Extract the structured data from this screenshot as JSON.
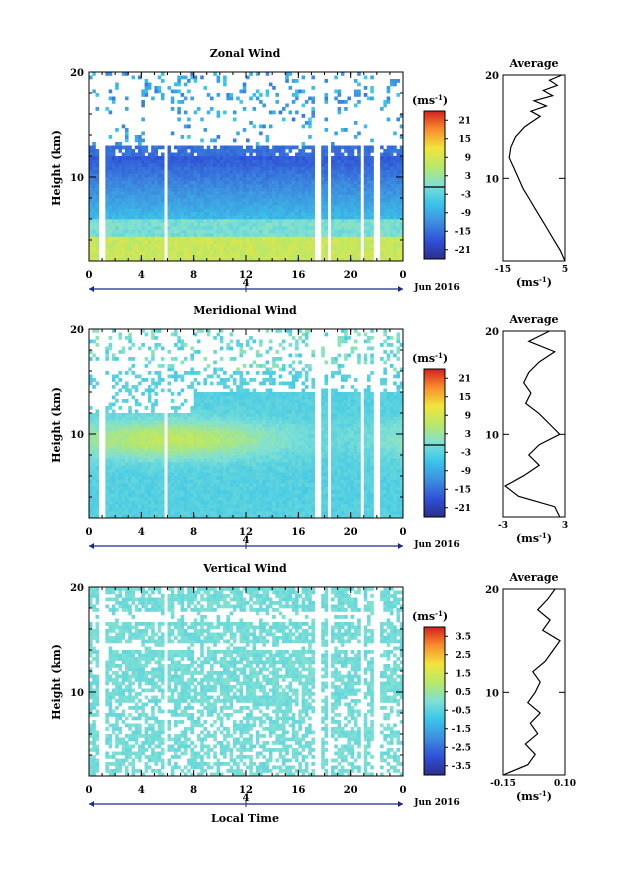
{
  "figure": {
    "xlabel": "Local Time",
    "date_label": "Jun 2016",
    "date_tick": "4",
    "unit_label": "(ms",
    "unit_sup": "-1",
    "unit_close": ")"
  },
  "chart_data": [
    {
      "type": "heatmap",
      "title": "Zonal Wind",
      "xlabel": "",
      "ylabel": "Height (km)",
      "x_ticks": [
        "0",
        "4",
        "8",
        "12",
        "16",
        "20",
        "0"
      ],
      "xlim": [
        0,
        24
      ],
      "ylim": [
        2,
        20
      ],
      "y_ticks": [
        "10",
        "20"
      ],
      "colorbar": {
        "unit": "(ms-1)",
        "ticks": [
          "21",
          "15",
          "9",
          "3",
          "-3",
          "-9",
          "-15",
          "-21"
        ],
        "range": [
          -24,
          24
        ]
      },
      "data_gaps_hours": [
        1,
        5.9,
        17.5,
        18.4,
        20.9,
        22.0
      ],
      "profile": {
        "title": "Average",
        "xlabel": "(ms-1)",
        "x_ticks": [
          "-15",
          "5"
        ],
        "xlim": [
          -15,
          5
        ],
        "y_ticks": [
          "10",
          "20"
        ],
        "height_km": [
          2.0,
          3.0,
          4.0,
          5.0,
          6.0,
          7.0,
          8.0,
          9.0,
          10.0,
          11.0,
          12.0,
          13.0,
          14.0,
          15.0,
          16.0,
          16.5,
          17.0,
          17.5,
          18.0,
          18.5,
          19.0,
          19.5,
          20.0
        ],
        "values": [
          5.0,
          3.5,
          1.5,
          -0.5,
          -2.5,
          -4.5,
          -6.5,
          -8.5,
          -10.0,
          -11.5,
          -13.0,
          -12.5,
          -11.0,
          -8.0,
          -3.0,
          -6.0,
          -1.0,
          -5.0,
          1.0,
          -2.0,
          2.5,
          0.0,
          4.0
        ]
      }
    },
    {
      "type": "heatmap",
      "title": "Meridional Wind",
      "xlabel": "",
      "ylabel": "Height (km)",
      "x_ticks": [
        "0",
        "4",
        "8",
        "12",
        "16",
        "20",
        "0"
      ],
      "xlim": [
        0,
        24
      ],
      "ylim": [
        2,
        20
      ],
      "y_ticks": [
        "10",
        "20"
      ],
      "colorbar": {
        "unit": "(ms-1)",
        "ticks": [
          "21",
          "15",
          "9",
          "3",
          "-3",
          "-9",
          "-15",
          "-21"
        ],
        "range": [
          -24,
          24
        ]
      },
      "data_gaps_hours": [
        1,
        5.9,
        17.5,
        18.4,
        20.9,
        22.0
      ],
      "profile": {
        "title": "Average",
        "xlabel": "(ms-1)",
        "x_ticks": [
          "-3",
          "3"
        ],
        "xlim": [
          -3,
          3
        ],
        "y_ticks": [
          "10",
          "20"
        ],
        "height_km": [
          2.0,
          3.0,
          4.0,
          5.0,
          6.0,
          7.0,
          8.0,
          9.0,
          10.0,
          11.0,
          12.0,
          13.0,
          14.0,
          15.0,
          16.0,
          17.0,
          18.0,
          19.0,
          20.0
        ],
        "values": [
          2.5,
          2.0,
          -1.5,
          -2.8,
          -1.0,
          0.5,
          -0.5,
          0.5,
          2.5,
          1.5,
          0.5,
          -0.8,
          -0.3,
          -1.0,
          -0.5,
          0.5,
          2.0,
          -0.5,
          1.5
        ]
      }
    },
    {
      "type": "heatmap",
      "title": "Vertical Wind",
      "xlabel": "Local Time",
      "ylabel": "Height (km)",
      "x_ticks": [
        "0",
        "4",
        "8",
        "12",
        "16",
        "20",
        "0"
      ],
      "xlim": [
        0,
        24
      ],
      "ylim": [
        2,
        20
      ],
      "y_ticks": [
        "10",
        "20"
      ],
      "colorbar": {
        "unit": "(ms-1)",
        "ticks": [
          "3.5",
          "2.5",
          "1.5",
          "0.5",
          "-0.5",
          "-1.5",
          "-2.5",
          "-3.5"
        ],
        "range": [
          -4,
          4
        ]
      },
      "data_gaps_hours": [
        1,
        5.9,
        17.5,
        18.4,
        20.9,
        22.0
      ],
      "profile": {
        "title": "Average",
        "xlabel": "(ms-1)",
        "x_ticks": [
          "-0.15",
          "0.10"
        ],
        "xlim": [
          -0.15,
          0.1
        ],
        "y_ticks": [
          "10",
          "20"
        ],
        "height_km": [
          2.0,
          3.0,
          4.0,
          5.0,
          6.0,
          7.0,
          8.0,
          9.0,
          10.0,
          11.0,
          12.0,
          13.0,
          14.0,
          15.0,
          16.0,
          17.0,
          18.0,
          19.0,
          20.0
        ],
        "values": [
          -0.15,
          -0.05,
          -0.02,
          -0.06,
          -0.01,
          -0.04,
          0.0,
          -0.05,
          -0.02,
          0.0,
          -0.03,
          0.02,
          0.05,
          0.08,
          0.01,
          0.04,
          -0.01,
          0.03,
          0.06
        ]
      }
    }
  ]
}
